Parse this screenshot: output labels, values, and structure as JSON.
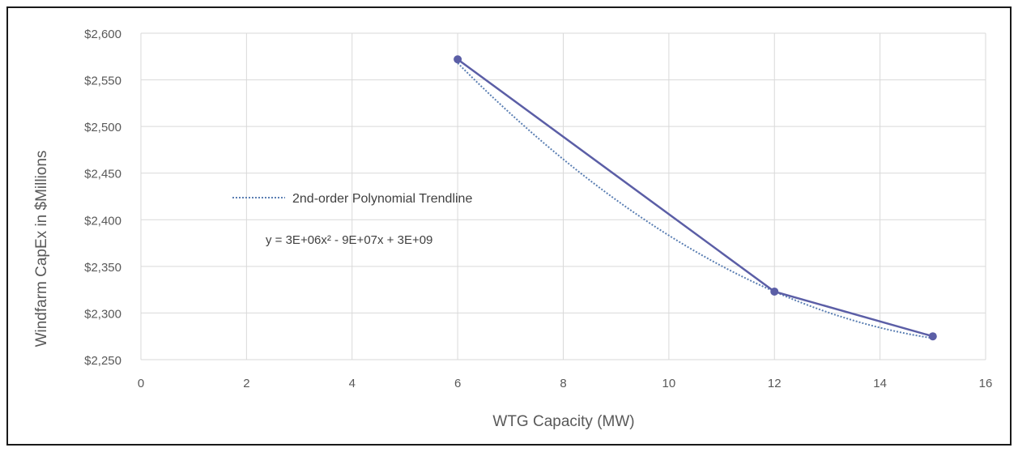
{
  "chart_data": {
    "type": "line",
    "title": "",
    "xlabel": "WTG Capacity (MW)",
    "ylabel": "Windfarm CapEx in $Millions",
    "xlim": [
      0,
      16
    ],
    "ylim": [
      2250,
      2600
    ],
    "x_ticks": [
      0,
      2,
      4,
      6,
      8,
      10,
      12,
      14,
      16
    ],
    "x_tick_labels": [
      "0",
      "2",
      "4",
      "6",
      "8",
      "10",
      "12",
      "14",
      "16"
    ],
    "y_ticks": [
      2250,
      2300,
      2350,
      2400,
      2450,
      2500,
      2550,
      2600
    ],
    "y_tick_labels": [
      "$2,250",
      "$2,300",
      "$2,350",
      "$2,400",
      "$2,450",
      "$2,500",
      "$2,550",
      "$2,600"
    ],
    "grid": true,
    "series": [
      {
        "values": [
          {
            "x": 6,
            "y": 2572
          },
          {
            "x": 12,
            "y": 2323
          },
          {
            "x": 15,
            "y": 2275
          }
        ],
        "color": "#5b5ea6",
        "marker": "circle"
      }
    ],
    "trendline": {
      "name": "2nd-order Polynomial Trendline",
      "equation": "y = 3E+06x² - 9E+07x + 3E+09",
      "style": "dotted",
      "color": "#5b7fb3",
      "x": [
        6,
        12,
        15
      ],
      "y": [
        2568,
        2323,
        2273
      ]
    },
    "legend": {
      "placement": "inside-left",
      "entries": [
        "2nd-order Polynomial Trendline"
      ]
    }
  }
}
